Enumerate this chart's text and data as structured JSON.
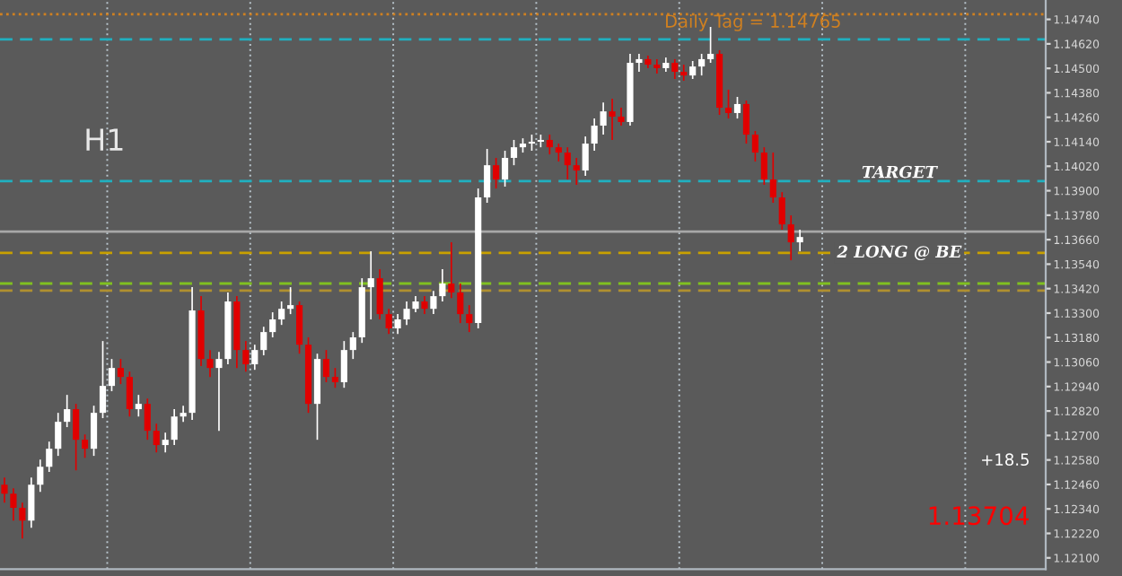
{
  "chart_data": {
    "type": "candlestick",
    "categories": [
      null,
      null,
      null,
      null,
      null,
      null,
      null,
      null,
      null,
      null,
      null,
      null,
      null,
      null,
      null,
      null,
      null,
      null,
      null,
      null,
      null,
      null,
      null,
      null,
      null,
      null,
      null,
      null,
      null,
      null,
      null,
      null,
      null,
      null,
      null,
      null,
      null,
      null,
      null,
      null,
      null,
      null,
      null,
      null,
      null,
      null,
      null,
      null,
      null,
      null,
      null,
      null,
      null,
      null,
      null,
      null,
      null,
      null,
      null,
      null,
      null,
      null,
      null,
      null,
      null,
      null,
      null,
      null,
      null,
      null,
      null,
      null,
      null,
      null,
      null,
      null,
      null,
      null,
      null,
      null,
      null,
      null,
      null,
      null,
      null,
      null,
      null,
      null,
      null,
      null,
      null,
      null,
      null,
      null,
      null,
      null,
      null,
      null,
      null,
      null,
      null,
      null,
      null,
      null,
      null,
      null,
      null,
      null,
      null,
      null,
      null,
      null,
      null,
      null,
      null,
      null,
      null
    ],
    "ohlc": [
      [
        1.12459,
        1.12494,
        1.12371,
        1.12415
      ],
      [
        1.12415,
        1.12441,
        1.12283,
        1.12345
      ],
      [
        1.12345,
        1.12371,
        1.12195,
        1.12283
      ],
      [
        1.12283,
        1.12494,
        1.12248,
        1.12459
      ],
      [
        1.12459,
        1.12582,
        1.12424,
        1.12547
      ],
      [
        1.12547,
        1.1267,
        1.12521,
        1.12635
      ],
      [
        1.12635,
        1.12811,
        1.126,
        1.12767
      ],
      [
        1.12767,
        1.12899,
        1.12741,
        1.12829
      ],
      [
        1.12829,
        1.12855,
        1.12529,
        1.12679
      ],
      [
        1.12679,
        1.12705,
        1.12591,
        1.12635
      ],
      [
        1.12635,
        1.12846,
        1.126,
        1.12811
      ],
      [
        1.12811,
        1.13163,
        1.12785,
        1.12943
      ],
      [
        1.12943,
        1.13075,
        1.12917,
        1.13031
      ],
      [
        1.13031,
        1.13075,
        1.12952,
        1.12987
      ],
      [
        1.12987,
        1.13013,
        1.12793,
        1.12829
      ],
      [
        1.12829,
        1.12899,
        1.12793,
        1.12855
      ],
      [
        1.12855,
        1.12881,
        1.12679,
        1.12723
      ],
      [
        1.12723,
        1.12758,
        1.12617,
        1.12653
      ],
      [
        1.12653,
        1.12714,
        1.12617,
        1.12679
      ],
      [
        1.12679,
        1.12829,
        1.12653,
        1.12793
      ],
      [
        1.12793,
        1.12846,
        1.12767,
        1.12811
      ],
      [
        1.12811,
        1.13427,
        1.12776,
        1.13313
      ],
      [
        1.13313,
        1.13383,
        1.1304,
        1.13075
      ],
      [
        1.13075,
        1.13119,
        1.12987,
        1.13031
      ],
      [
        1.13031,
        1.1311,
        1.12723,
        1.13075
      ],
      [
        1.13075,
        1.13401,
        1.13049,
        1.13357
      ],
      [
        1.13357,
        1.13383,
        1.13031,
        1.13119
      ],
      [
        1.13119,
        1.13163,
        1.13013,
        1.13049
      ],
      [
        1.13049,
        1.13145,
        1.13022,
        1.13119
      ],
      [
        1.13119,
        1.13233,
        1.13093,
        1.13207
      ],
      [
        1.13207,
        1.13304,
        1.13181,
        1.13269
      ],
      [
        1.13269,
        1.13357,
        1.13242,
        1.13321
      ],
      [
        1.13321,
        1.13427,
        1.13295,
        1.13339
      ],
      [
        1.13339,
        1.13357,
        1.13101,
        1.13145
      ],
      [
        1.13145,
        1.13181,
        1.12811,
        1.12855
      ],
      [
        1.12855,
        1.13101,
        1.12679,
        1.13075
      ],
      [
        1.13075,
        1.13119,
        1.12961,
        1.12987
      ],
      [
        1.12987,
        1.13031,
        1.12934,
        1.12961
      ],
      [
        1.12961,
        1.13163,
        1.12934,
        1.13119
      ],
      [
        1.13119,
        1.13207,
        1.13075,
        1.13181
      ],
      [
        1.13181,
        1.13471,
        1.13154,
        1.13427
      ],
      [
        1.13427,
        1.13603,
        1.13269,
        1.13471
      ],
      [
        1.13471,
        1.13515,
        1.13269,
        1.13295
      ],
      [
        1.13295,
        1.13321,
        1.13198,
        1.13225
      ],
      [
        1.13225,
        1.13295,
        1.13198,
        1.13269
      ],
      [
        1.13269,
        1.13357,
        1.13242,
        1.13321
      ],
      [
        1.13321,
        1.13383,
        1.13304,
        1.13357
      ],
      [
        1.13357,
        1.13383,
        1.13295,
        1.13321
      ],
      [
        1.13321,
        1.13409,
        1.13295,
        1.13383
      ],
      [
        1.13383,
        1.13515,
        1.13357,
        1.13445
      ],
      [
        1.13445,
        1.13647,
        1.13374,
        1.13401
      ],
      [
        1.13401,
        1.13445,
        1.13251,
        1.13295
      ],
      [
        1.13295,
        1.13339,
        1.13207,
        1.13251
      ],
      [
        1.13251,
        1.13911,
        1.13225,
        1.13867
      ],
      [
        1.13867,
        1.14105,
        1.13841,
        1.14025
      ],
      [
        1.14025,
        1.14061,
        1.13911,
        1.13955
      ],
      [
        1.13955,
        1.14096,
        1.1392,
        1.14061
      ],
      [
        1.14061,
        1.14149,
        1.14025,
        1.14113
      ],
      [
        1.14113,
        1.14157,
        1.14087,
        1.14131
      ],
      [
        1.14131,
        1.14175,
        1.14096,
        1.1414
      ],
      [
        1.1414,
        1.14175,
        1.14113,
        1.14149
      ],
      [
        1.14149,
        1.14175,
        1.14078,
        1.14113
      ],
      [
        1.14113,
        1.14131,
        1.14043,
        1.14087
      ],
      [
        1.14087,
        1.14113,
        1.13955,
        1.14025
      ],
      [
        1.14025,
        1.14061,
        1.13929,
        1.13999
      ],
      [
        1.13999,
        1.14166,
        1.13973,
        1.14131
      ],
      [
        1.14131,
        1.14254,
        1.14096,
        1.14219
      ],
      [
        1.14219,
        1.14333,
        1.14175,
        1.14289
      ],
      [
        1.14289,
        1.14351,
        1.14149,
        1.14263
      ],
      [
        1.14263,
        1.14307,
        1.14219,
        1.14237
      ],
      [
        1.14237,
        1.14571,
        1.14219,
        1.14527
      ],
      [
        1.14527,
        1.14571,
        1.14483,
        1.14545
      ],
      [
        1.14545,
        1.14562,
        1.14501,
        1.14518
      ],
      [
        1.14518,
        1.14545,
        1.14474,
        1.14501
      ],
      [
        1.14501,
        1.14553,
        1.14483,
        1.14527
      ],
      [
        1.14527,
        1.14545,
        1.14448,
        1.14483
      ],
      [
        1.14483,
        1.14518,
        1.14439,
        1.14465
      ],
      [
        1.14465,
        1.14536,
        1.14448,
        1.14509
      ],
      [
        1.14509,
        1.14571,
        1.14465,
        1.14545
      ],
      [
        1.14545,
        1.14703,
        1.14527,
        1.14571
      ],
      [
        1.14571,
        1.14589,
        1.14272,
        1.14307
      ],
      [
        1.14307,
        1.14395,
        1.14254,
        1.14281
      ],
      [
        1.14281,
        1.1436,
        1.14254,
        1.14325
      ],
      [
        1.14325,
        1.14342,
        1.14131,
        1.14175
      ],
      [
        1.14175,
        1.14193,
        1.14043,
        1.14087
      ],
      [
        1.14087,
        1.14113,
        1.13929,
        1.13955
      ],
      [
        1.13955,
        1.14087,
        1.13841,
        1.13867
      ],
      [
        1.13867,
        1.13893,
        1.13709,
        1.13735
      ],
      [
        1.13735,
        1.13779,
        1.13559,
        1.13647
      ],
      [
        1.13647,
        1.13709,
        1.13603,
        1.13673
      ],
      null,
      null,
      null,
      null,
      null,
      null,
      null,
      null,
      null,
      null,
      null,
      null,
      null,
      null,
      null,
      null,
      null,
      null,
      null,
      null,
      null,
      null,
      null,
      null,
      null,
      null,
      null
    ],
    "colors": [
      "#e00000",
      "#e00000",
      "#e00000",
      "#ffffff",
      "#ffffff",
      "#ffffff",
      "#ffffff",
      "#ffffff",
      "#e00000",
      "#e00000",
      "#ffffff",
      "#ffffff",
      "#ffffff",
      "#e00000",
      "#e00000",
      "#ffffff",
      "#e00000",
      "#e00000",
      "#ffffff",
      "#ffffff",
      "#ffffff",
      "#ffffff",
      "#e00000",
      "#e00000",
      "#ffffff",
      "#ffffff",
      "#e00000",
      "#e00000",
      "#ffffff",
      "#ffffff",
      "#ffffff",
      "#ffffff",
      "#ffffff",
      "#e00000",
      "#e00000",
      "#ffffff",
      "#e00000",
      "#e00000",
      "#ffffff",
      "#ffffff",
      "#ffffff",
      "#ffffff",
      "#e00000",
      "#e00000",
      "#ffffff",
      "#ffffff",
      "#ffffff",
      "#e00000",
      "#ffffff",
      "#ffffff",
      "#e00000",
      "#e00000",
      "#e00000",
      "#ffffff",
      "#ffffff",
      "#e00000",
      "#ffffff",
      "#ffffff",
      "#ffffff",
      "#ffffff",
      "#ffffff",
      "#e00000",
      "#e00000",
      "#e00000",
      "#e00000",
      "#ffffff",
      "#ffffff",
      "#ffffff",
      "#e00000",
      "#e00000",
      "#ffffff",
      "#ffffff",
      "#e00000",
      "#e00000",
      "#ffffff",
      "#e00000",
      "#e00000",
      "#ffffff",
      "#ffffff",
      "#ffffff",
      "#e00000",
      "#e00000",
      "#ffffff",
      "#e00000",
      "#e00000",
      "#e00000",
      "#e00000",
      "#e00000",
      "#e00000",
      "#ffffff",
      null,
      null,
      null,
      null,
      null,
      null,
      null,
      null,
      null,
      null,
      null,
      null,
      null,
      null,
      null,
      null,
      null,
      null,
      null,
      null,
      null,
      null,
      null,
      null,
      null,
      null,
      null
    ],
    "ylim": [
      1.12045,
      1.14835
    ],
    "yticks": [
      {
        "value": 1.121,
        "label": "1.12100"
      },
      {
        "value": 1.1222,
        "label": "1.12220"
      },
      {
        "value": 1.1234,
        "label": "1.12340"
      },
      {
        "value": 1.1246,
        "label": "1.12460"
      },
      {
        "value": 1.1258,
        "label": "1.12580"
      },
      {
        "value": 1.127,
        "label": "1.12700"
      },
      {
        "value": 1.1282,
        "label": "1.12820"
      },
      {
        "value": 1.1294,
        "label": "1.12940"
      },
      {
        "value": 1.1306,
        "label": "1.13060"
      },
      {
        "value": 1.1318,
        "label": "1.13180"
      },
      {
        "value": 1.133,
        "label": "1.13300"
      },
      {
        "value": 1.1342,
        "label": "1.13420"
      },
      {
        "value": 1.1354,
        "label": "1.13540"
      },
      {
        "value": 1.1366,
        "label": "1.13660"
      },
      {
        "value": 1.1378,
        "label": "1.13780"
      },
      {
        "value": 1.139,
        "label": "1.13900"
      },
      {
        "value": 1.1402,
        "label": "1.14020"
      },
      {
        "value": 1.1414,
        "label": "1.14140"
      },
      {
        "value": 1.1426,
        "label": "1.14260"
      },
      {
        "value": 1.1438,
        "label": "1.14380"
      },
      {
        "value": 1.145,
        "label": "1.14500"
      },
      {
        "value": 1.1462,
        "label": "1.14620"
      },
      {
        "value": 1.1474,
        "label": "1.14740"
      }
    ],
    "tick_labels": "y",
    "ref_lines": [
      {
        "axis": "y",
        "value": 1.14765,
        "label": "Daily Tag = 1.14765",
        "color": "#d08020",
        "line_style": "dotted"
      },
      {
        "axis": "y",
        "value": 1.14642,
        "color": "#20b0c0",
        "line_style": "dashed"
      },
      {
        "axis": "y",
        "value": 1.13947,
        "label": "TARGET",
        "color": "#20b0c0",
        "line_style": "dashed"
      },
      {
        "axis": "y",
        "value": 1.137,
        "color": "#a8a8a8",
        "line_style": "solid"
      },
      {
        "axis": "y",
        "value": 1.13595,
        "label": "2 LONG @ BE",
        "color": "#c8a000",
        "line_style": "dashed"
      },
      {
        "axis": "y",
        "value": 1.13445,
        "color": "#80c020",
        "line_style": "dashed"
      },
      {
        "axis": "y",
        "value": 1.1341,
        "color": "#b09030",
        "line_style": "dashed"
      }
    ],
    "annotations": [
      "H1",
      "+18.5",
      "1.13704"
    ]
  }
}
